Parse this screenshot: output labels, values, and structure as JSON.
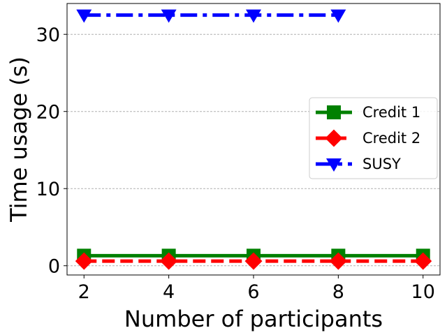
{
  "chart_data": {
    "type": "line",
    "title": "",
    "xlabel": "Number of participants",
    "ylabel": "Time usage (s)",
    "xlim": [
      1.6,
      10.4
    ],
    "ylim": [
      -1.2,
      34
    ],
    "x_ticks": [
      2,
      4,
      6,
      8,
      10
    ],
    "y_ticks": [
      0,
      10,
      20,
      30
    ],
    "grid": "y-axis dashed",
    "legend": "center-right",
    "series": [
      {
        "name": "Credit 1",
        "color": "#008000",
        "marker": "square",
        "linestyle": "solid",
        "x": [
          2,
          4,
          6,
          8,
          10
        ],
        "values": [
          1.3,
          1.3,
          1.3,
          1.3,
          1.3
        ]
      },
      {
        "name": "Credit 2",
        "color": "#ff0000",
        "marker": "diamond",
        "linestyle": "dashed",
        "x": [
          2,
          4,
          6,
          8,
          10
        ],
        "values": [
          0.6,
          0.6,
          0.6,
          0.6,
          0.6
        ]
      },
      {
        "name": "SUSY",
        "color": "#0000ff",
        "marker": "triangle-down",
        "linestyle": "dashdot",
        "x": [
          2,
          4,
          6,
          8
        ],
        "values": [
          32.5,
          32.5,
          32.5,
          32.5
        ]
      }
    ]
  }
}
